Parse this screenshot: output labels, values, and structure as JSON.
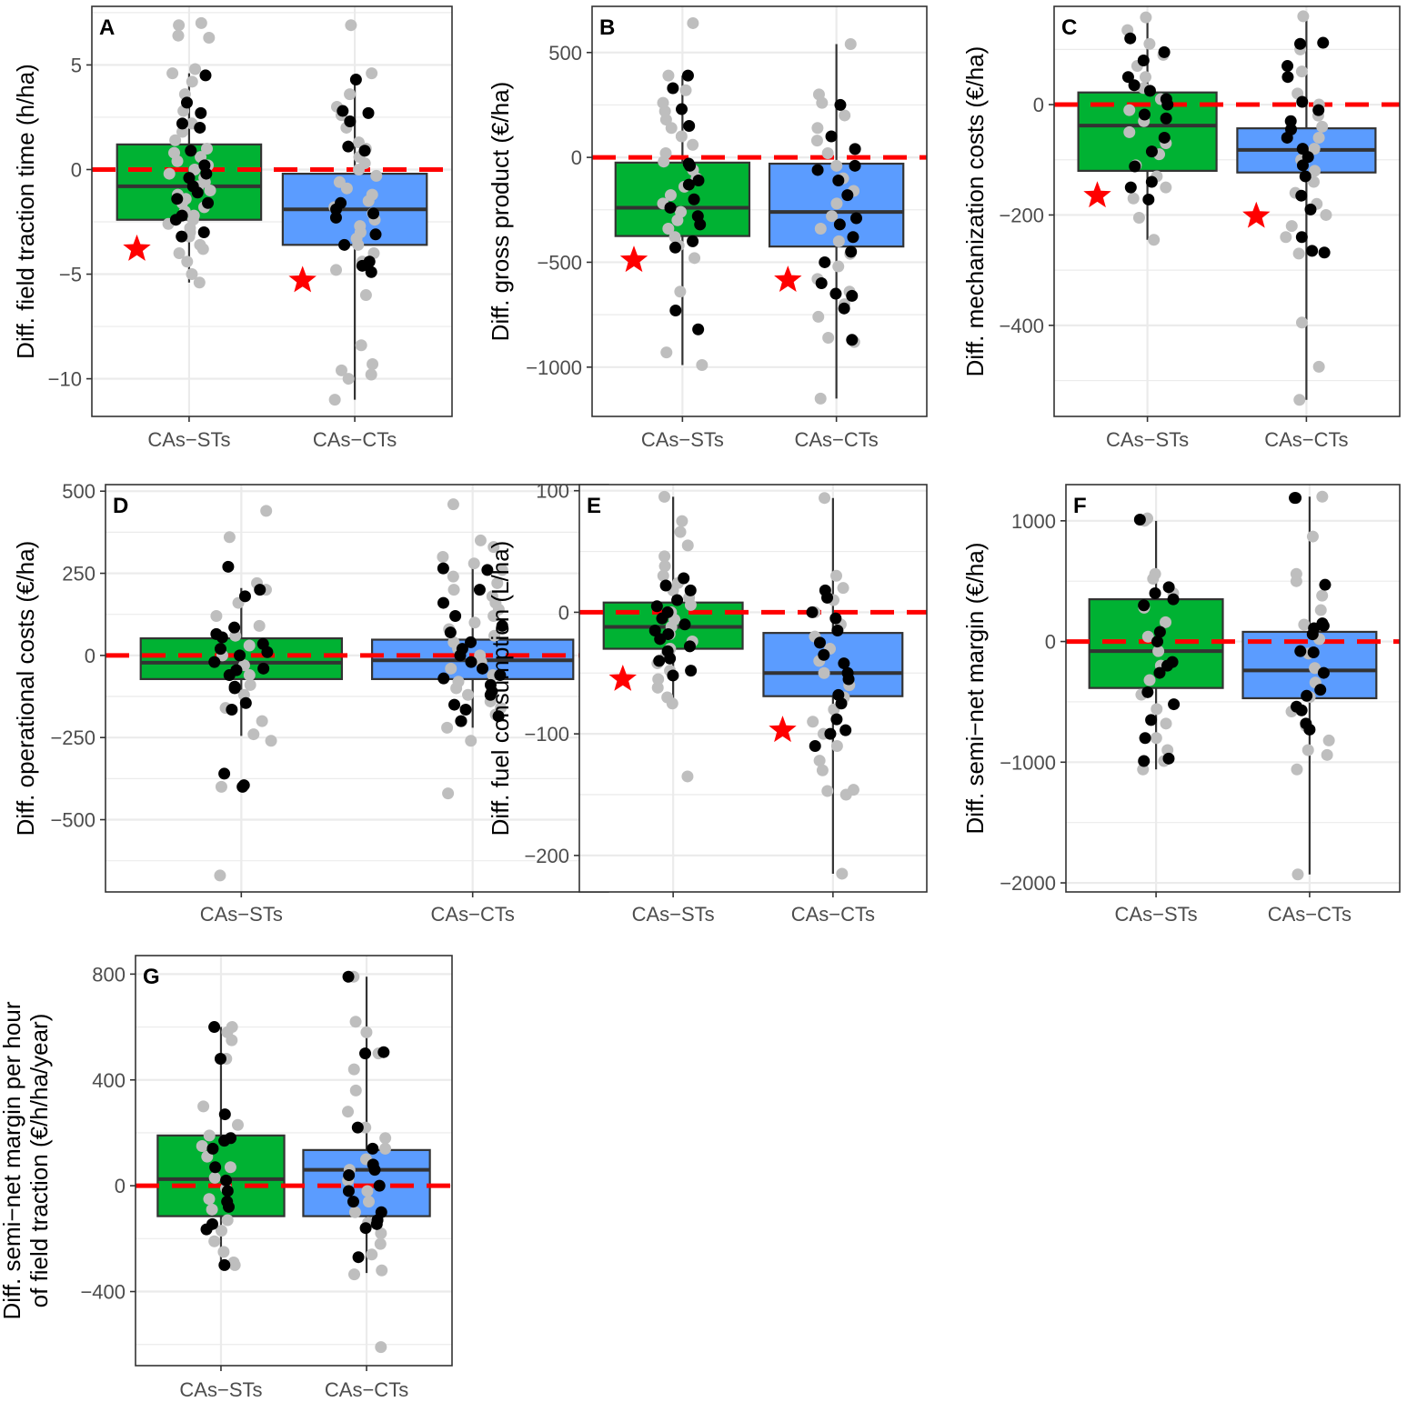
{
  "colors": {
    "st_fill": "#00b233",
    "ct_fill": "#5b9cff",
    "box_stroke": "#333333",
    "reference_line": "#ff0000",
    "star": "#ff0000",
    "point_grey": "#bebebe",
    "point_black": "#000000",
    "grid": "#ebebeb",
    "panel_border": "#333333"
  },
  "chart_data": [
    {
      "id": "A",
      "type": "box",
      "categories": [
        "CAs−STs",
        "CAs−CTs"
      ],
      "ylabel": [
        "Diff. field traction time (h/ha)"
      ],
      "ylim": [
        -11.8,
        7.8
      ],
      "yticks": [
        {
          "value": -10,
          "label": "−10"
        },
        {
          "value": -5,
          "label": "−5"
        },
        {
          "value": 0,
          "label": "0"
        },
        {
          "value": 5,
          "label": "5"
        }
      ],
      "reference": 0,
      "boxes": [
        {
          "q1": -2.4,
          "median": -0.8,
          "q3": 1.2,
          "wlo": -5.4,
          "whi": 4.6
        },
        {
          "q1": -3.6,
          "median": -1.9,
          "q3": -0.2,
          "wlo": -11,
          "whi": 4.3
        }
      ],
      "stars": [
        -3.8,
        -5.3
      ],
      "grey": [
        [
          -5.4,
          -5,
          -4.4,
          -4,
          -3.8,
          -3.6,
          -3.2,
          -3,
          -2.8,
          -2.6,
          -2.4,
          -2.2,
          -2,
          -1.8,
          -1.6,
          -1.4,
          -1.2,
          -1,
          -0.8,
          -0.6,
          -0.4,
          -0.2,
          0,
          0.2,
          0.4,
          0.6,
          0.8,
          1,
          1.4,
          1.8,
          2.2,
          2.8,
          3.6,
          4.2,
          4.6,
          4.8,
          6.3,
          6.4,
          6.9,
          7
        ],
        [
          -11,
          -10,
          -9.8,
          -9.6,
          -9.3,
          -8.4,
          -6,
          -4.8,
          -4.4,
          -4,
          -3.6,
          -3.3,
          -3,
          -2.7,
          -2.4,
          -2.1,
          -1.8,
          -1.5,
          -1.2,
          -0.9,
          -0.6,
          -0.3,
          0,
          0.3,
          0.6,
          1,
          1.3,
          2,
          2.6,
          3,
          3.6,
          4.6,
          6.9
        ]
      ],
      "black": [
        [
          -3.2,
          -3,
          -2.4,
          -2.2,
          -1.6,
          -1.4,
          -1.1,
          -0.8,
          -0.4,
          -0.2,
          0.2,
          0.9,
          2,
          2.2,
          2.7,
          3.2,
          4.5
        ],
        [
          -4.9,
          -4.6,
          -4.4,
          -3.6,
          -3.1,
          -2.3,
          -2.1,
          -1.9,
          -1.6,
          0.9,
          1.1,
          2.3,
          2.7,
          2.8,
          4.3
        ]
      ]
    },
    {
      "id": "B",
      "type": "box",
      "categories": [
        "CAs−STs",
        "CAs−CTs"
      ],
      "ylabel": [
        "Diff. gross product (€/ha)"
      ],
      "ylim": [
        -1235,
        720
      ],
      "yticks": [
        {
          "value": -1000,
          "label": "−1000"
        },
        {
          "value": -500,
          "label": "−500"
        },
        {
          "value": 0,
          "label": "0"
        },
        {
          "value": 500,
          "label": "500"
        }
      ],
      "reference": 0,
      "boxes": [
        {
          "q1": -375,
          "median": -240,
          "q3": -25,
          "wlo": -990,
          "whi": 390
        },
        {
          "q1": -425,
          "median": -260,
          "q3": -30,
          "wlo": -1150,
          "whi": 540
        }
      ],
      "stars": [
        -490,
        -585
      ],
      "grey": [
        [
          -990,
          -930,
          -640,
          -480,
          -420,
          -380,
          -340,
          -300,
          -260,
          -220,
          -180,
          -140,
          -100,
          -60,
          -20,
          20,
          60,
          100,
          140,
          180,
          220,
          260,
          320,
          390,
          640
        ],
        [
          -1150,
          -880,
          -860,
          -760,
          -700,
          -640,
          -580,
          -520,
          -460,
          -400,
          -340,
          -280,
          -220,
          -160,
          -100,
          -40,
          20,
          80,
          140,
          200,
          260,
          300,
          540
        ]
      ],
      "black": [
        [
          -820,
          -730,
          -430,
          -400,
          -320,
          -280,
          -240,
          -200,
          -130,
          -110,
          -40,
          -30,
          150,
          230,
          330,
          390
        ],
        [
          -870,
          -720,
          -660,
          -650,
          -600,
          -500,
          -450,
          -380,
          -320,
          -290,
          -180,
          -110,
          -60,
          -40,
          40,
          100,
          250
        ]
      ]
    },
    {
      "id": "C",
      "type": "box",
      "categories": [
        "CAs−STs",
        "CAs−CTs"
      ],
      "ylabel": [
        "Diff. mechanization costs (€/ha)"
      ],
      "ylim": [
        -565,
        178
      ],
      "yticks": [
        {
          "value": -400,
          "label": "−400"
        },
        {
          "value": -200,
          "label": "−200"
        },
        {
          "value": 0,
          "label": "0"
        }
      ],
      "reference": 0,
      "boxes": [
        {
          "q1": -120,
          "median": -38,
          "q3": 22,
          "wlo": -245,
          "whi": 158
        },
        {
          "q1": -123,
          "median": -82,
          "q3": -43,
          "wlo": -535,
          "whi": 160
        }
      ],
      "stars": [
        -165,
        -202
      ],
      "grey": [
        [
          -245,
          -205,
          -170,
          -150,
          -130,
          -110,
          -90,
          -70,
          -50,
          -30,
          -10,
          10,
          30,
          50,
          70,
          90,
          110,
          135,
          158
        ],
        [
          -535,
          -475,
          -395,
          -270,
          -240,
          -220,
          -200,
          -180,
          -160,
          -140,
          -120,
          -100,
          -80,
          -60,
          -40,
          -20,
          0,
          20,
          60,
          100,
          160
        ]
      ],
      "black": [
        [
          -172,
          -150,
          -140,
          -112,
          -85,
          -60,
          -25,
          -18,
          0,
          10,
          25,
          35,
          50,
          80,
          95,
          120
        ],
        [
          -268,
          -265,
          -240,
          -190,
          -165,
          -130,
          -110,
          -95,
          -80,
          -60,
          -45,
          -30,
          -10,
          5,
          50,
          70,
          110,
          112
        ]
      ]
    },
    {
      "id": "D",
      "type": "box",
      "categories": [
        "CAs−STs",
        "CAs−CTs"
      ],
      "ylabel": [
        "Diff. operational costs (€/ha)"
      ],
      "ylim": [
        -720,
        520
      ],
      "yticks": [
        {
          "value": -500,
          "label": "−500"
        },
        {
          "value": -250,
          "label": "−250"
        },
        {
          "value": 0,
          "label": "0"
        },
        {
          "value": 250,
          "label": "250"
        },
        {
          "value": 500,
          "label": "500"
        }
      ],
      "reference": 0,
      "boxes": [
        {
          "q1": -72,
          "median": -22,
          "q3": 52,
          "wlo": -245,
          "whi": 205
        },
        {
          "q1": -72,
          "median": -15,
          "q3": 48,
          "wlo": -220,
          "whi": 270
        }
      ],
      "stars": [],
      "grey": [
        [
          -670,
          -400,
          -260,
          -240,
          -200,
          -160,
          -120,
          -90,
          -60,
          -30,
          0,
          30,
          60,
          90,
          120,
          160,
          200,
          220,
          360,
          440
        ],
        [
          -420,
          -260,
          -220,
          -200,
          -180,
          -160,
          -140,
          -120,
          -100,
          -80,
          -60,
          -40,
          -20,
          0,
          20,
          40,
          60,
          80,
          100,
          120,
          140,
          160,
          180,
          200,
          220,
          240,
          260,
          280,
          300,
          330,
          350,
          460
        ]
      ],
      "black": [
        [
          -400,
          -395,
          -360,
          -165,
          -145,
          -100,
          -95,
          -60,
          -45,
          -40,
          -20,
          0,
          10,
          20,
          35,
          55,
          65,
          85,
          180,
          200,
          270
        ],
        [
          -200,
          -185,
          -165,
          -150,
          -120,
          -110,
          -90,
          -70,
          -60,
          -40,
          -20,
          0,
          20,
          40,
          70,
          90,
          120,
          160,
          200,
          260,
          265
        ]
      ]
    },
    {
      "id": "E",
      "type": "box",
      "categories": [
        "CAs−STs",
        "CAs−CTs"
      ],
      "ylabel": [
        "Diff. fuel consumption (L/ha)"
      ],
      "ylim": [
        -230,
        105
      ],
      "yticks": [
        {
          "value": -200,
          "label": "−200"
        },
        {
          "value": -100,
          "label": "−100"
        },
        {
          "value": 0,
          "label": "0"
        },
        {
          "value": 100,
          "label": "100"
        }
      ],
      "reference": 0,
      "boxes": [
        {
          "q1": -30,
          "median": -12,
          "q3": 8,
          "wlo": -75,
          "whi": 95
        },
        {
          "q1": -69,
          "median": -50,
          "q3": -17,
          "wlo": -215,
          "whi": 94
        }
      ],
      "stars": [
        -55,
        -97
      ],
      "grey": [
        [
          -135,
          -75,
          -70,
          -62,
          -55,
          -48,
          -42,
          -36,
          -30,
          -24,
          -18,
          -12,
          -6,
          0,
          6,
          12,
          18,
          24,
          30,
          38,
          46,
          55,
          66,
          75,
          95
        ],
        [
          -215,
          -150,
          -147,
          -146,
          -130,
          -122,
          -110,
          -100,
          -90,
          -80,
          -70,
          -60,
          -50,
          -40,
          -30,
          -20,
          -10,
          0,
          10,
          20,
          30,
          94
        ]
      ],
      "black": [
        [
          -52,
          -48,
          -40,
          -38,
          -32,
          -28,
          -22,
          -18,
          -15,
          -10,
          -5,
          0,
          5,
          10,
          18,
          22,
          28
        ],
        [
          -110,
          -100,
          -97,
          -88,
          -75,
          -68,
          -55,
          -50,
          -42,
          -35,
          -25,
          -15,
          -5,
          0,
          12,
          18
        ]
      ]
    },
    {
      "id": "F",
      "type": "box",
      "categories": [
        "CAs−STs",
        "CAs−CTs"
      ],
      "ylabel": [
        "Diff. semi−net margin (€/ha)"
      ],
      "ylim": [
        -2075,
        1300
      ],
      "yticks": [
        {
          "value": -2000,
          "label": "−2000"
        },
        {
          "value": -1000,
          "label": "−1000"
        },
        {
          "value": 0,
          "label": "0"
        },
        {
          "value": 1000,
          "label": "1000"
        }
      ],
      "reference": 0,
      "boxes": [
        {
          "q1": -385,
          "median": -80,
          "q3": 350,
          "wlo": -1060,
          "whi": 1000
        },
        {
          "q1": -470,
          "median": -240,
          "q3": 80,
          "wlo": -1930,
          "whi": 1200
        }
      ],
      "stars": [],
      "grey": [
        [
          -1060,
          -990,
          -900,
          -800,
          -680,
          -560,
          -440,
          -320,
          -200,
          -80,
          40,
          160,
          280,
          400,
          520,
          560,
          1000,
          1020
        ],
        [
          -1930,
          -1060,
          -940,
          -900,
          -820,
          -700,
          -580,
          -460,
          -340,
          -220,
          -100,
          20,
          140,
          260,
          380,
          500,
          560,
          870,
          1200
        ]
      ],
      "black": [
        [
          -990,
          -970,
          -800,
          -650,
          -520,
          -420,
          -260,
          -200,
          -170,
          0,
          80,
          300,
          350,
          400,
          450,
          1010
        ],
        [
          -730,
          -680,
          -570,
          -540,
          -450,
          -400,
          -260,
          -90,
          -80,
          60,
          110,
          130,
          150,
          470,
          1190,
          1190
        ]
      ]
    },
    {
      "id": "G",
      "type": "box",
      "categories": [
        "CAs−STs",
        "CAs−CTs"
      ],
      "ylabel": [
        "Diff. semi−net margin per hour",
        "of field traction (€/h/ha/year)"
      ],
      "ylim": [
        -680,
        870
      ],
      "yticks": [
        {
          "value": -400,
          "label": "−400"
        },
        {
          "value": 0,
          "label": "0"
        },
        {
          "value": 400,
          "label": "400"
        },
        {
          "value": 800,
          "label": "800"
        }
      ],
      "reference": 0,
      "boxes": [
        {
          "q1": -115,
          "median": 25,
          "q3": 190,
          "wlo": -300,
          "whi": 600
        },
        {
          "q1": -115,
          "median": 60,
          "q3": 135,
          "wlo": -330,
          "whi": 790
        }
      ],
      "stars": [],
      "grey": [
        [
          -300,
          -290,
          -250,
          -210,
          -170,
          -130,
          -90,
          -50,
          -10,
          30,
          70,
          110,
          150,
          190,
          230,
          300,
          480,
          550,
          580,
          600
        ],
        [
          -610,
          -335,
          -320,
          -260,
          -220,
          -180,
          -140,
          -100,
          -60,
          -20,
          20,
          60,
          100,
          140,
          180,
          220,
          280,
          360,
          440,
          500,
          580,
          620,
          790
        ]
      ],
      "black": [
        [
          -300,
          -165,
          -145,
          -80,
          -60,
          -20,
          20,
          70,
          140,
          170,
          180,
          270,
          480,
          600
        ],
        [
          -270,
          -160,
          -145,
          -130,
          -100,
          -60,
          -20,
          0,
          40,
          60,
          80,
          140,
          220,
          500,
          505,
          790
        ]
      ]
    }
  ]
}
